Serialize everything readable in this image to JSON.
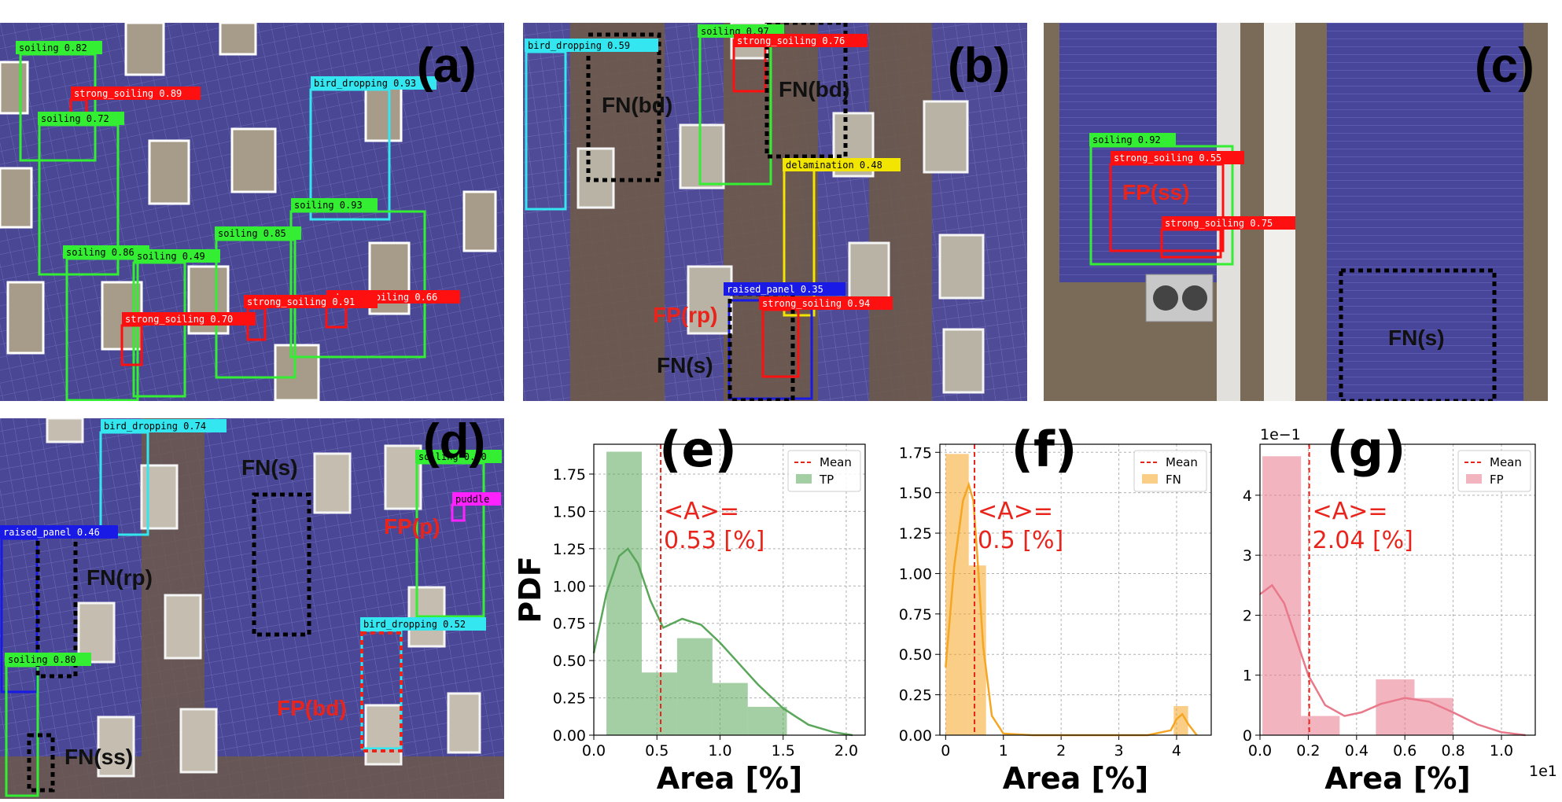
{
  "panels": {
    "a": {
      "id": "(a)",
      "detections": [
        {
          "label": "soiling 0.82",
          "color": "#33ee33"
        },
        {
          "label": "strong_soiling 0.89",
          "color": "#ff1010"
        },
        {
          "label": "soiling 0.72",
          "color": "#33ee33"
        },
        {
          "label": "bird_dropping 0.93",
          "color": "#33e6f0"
        },
        {
          "label": "soiling 0.93",
          "color": "#33ee33"
        },
        {
          "label": "soiling 0.85",
          "color": "#33ee33"
        },
        {
          "label": "soiling 0.86",
          "color": "#33ee33"
        },
        {
          "label": "soiling 0.49",
          "color": "#33ee33"
        },
        {
          "label": "strong_soiling 0.66",
          "color": "#ff1010"
        },
        {
          "label": "strong_soiling 0.91",
          "color": "#ff1010"
        },
        {
          "label": "strong_soiling 0.70",
          "color": "#ff1010"
        }
      ]
    },
    "b": {
      "id": "(b)",
      "detections": [
        {
          "label": "bird_dropping 0.59",
          "color": "#33e6f0"
        },
        {
          "label": "soiling 0.97",
          "color": "#33ee33"
        },
        {
          "label": "strong_soiling 0.76",
          "color": "#ff1010"
        },
        {
          "label": "delamination 0.48",
          "color": "#f2e600"
        },
        {
          "label": "raised_panel 0.35",
          "color": "#1a1ae6"
        },
        {
          "label": "strong_soiling 0.94",
          "color": "#ff1010"
        }
      ],
      "notes": [
        "FN(bd)",
        "FN(bd)",
        "FP(rp)",
        "FN(s)"
      ]
    },
    "c": {
      "id": "(c)",
      "detections": [
        {
          "label": "soiling 0.92",
          "color": "#33ee33"
        },
        {
          "label": "strong_soiling 0.55",
          "color": "#ff1010"
        },
        {
          "label": "strong_soiling 0.75",
          "color": "#ff1010"
        }
      ],
      "notes": [
        "FP(ss)",
        "FN(s)"
      ]
    },
    "d": {
      "id": "(d)",
      "detections": [
        {
          "label": "bird_dropping 0.74",
          "color": "#33e6f0"
        },
        {
          "label": "soiling 0.60",
          "color": "#33ee33"
        },
        {
          "label": "puddle",
          "color": "#ff22ff"
        },
        {
          "label": "raised_panel 0.46",
          "color": "#1a1ae6"
        },
        {
          "label": "bird_dropping 0.52",
          "color": "#33e6f0"
        },
        {
          "label": "soiling 0.80",
          "color": "#33ee33"
        }
      ],
      "notes": [
        "FN(s)",
        "FP(p)",
        "FN(rp)",
        "FP(bd)",
        "FN(ss)"
      ]
    }
  },
  "chart_data": [
    {
      "id": "(e)",
      "type": "bar",
      "xlabel": "Area [%]",
      "ylabel": "PDF",
      "xlim": [
        0,
        2.15
      ],
      "ylim": [
        0,
        1.95
      ],
      "xticks": [
        "0.0",
        "0.5",
        "1.0",
        "1.5",
        "2.0"
      ],
      "yticks": [
        "0.00",
        "0.25",
        "0.50",
        "0.75",
        "1.00",
        "1.25",
        "1.50",
        "1.75"
      ],
      "grid": true,
      "color": "#5aa65a",
      "bins": [
        {
          "x0": 0.1,
          "x1": 0.38,
          "value": 1.9
        },
        {
          "x0": 0.38,
          "x1": 0.66,
          "value": 0.42
        },
        {
          "x0": 0.66,
          "x1": 0.94,
          "value": 0.65
        },
        {
          "x0": 0.94,
          "x1": 1.22,
          "value": 0.35
        },
        {
          "x0": 1.22,
          "x1": 1.53,
          "value": 0.19
        }
      ],
      "kde": {
        "x": [
          0.0,
          0.1,
          0.2,
          0.27,
          0.35,
          0.45,
          0.55,
          0.7,
          0.85,
          1.0,
          1.15,
          1.3,
          1.5,
          1.7,
          1.9,
          2.05
        ],
        "y": [
          0.55,
          0.95,
          1.2,
          1.25,
          1.15,
          0.9,
          0.72,
          0.78,
          0.74,
          0.62,
          0.48,
          0.34,
          0.18,
          0.07,
          0.02,
          0.0
        ]
      },
      "mean": 0.53,
      "annotation": [
        "<A>=",
        "0.53 [%]"
      ],
      "legend": {
        "position": "top-right",
        "mean_label": "Mean",
        "series_label": "TP"
      }
    },
    {
      "id": "(f)",
      "type": "bar",
      "xlabel": "Area [%]",
      "ylabel": "",
      "xlim": [
        -0.1,
        4.6
      ],
      "ylim": [
        0,
        1.8
      ],
      "xticks": [
        "0",
        "1",
        "2",
        "3",
        "4"
      ],
      "yticks": [
        "0.00",
        "0.25",
        "0.50",
        "0.75",
        "1.00",
        "1.25",
        "1.50",
        "1.75"
      ],
      "grid": true,
      "color": "#f5a623",
      "bins": [
        {
          "x0": 0.0,
          "x1": 0.4,
          "value": 1.74
        },
        {
          "x0": 0.4,
          "x1": 0.7,
          "value": 1.05
        },
        {
          "x0": 3.95,
          "x1": 4.2,
          "value": 0.18
        }
      ],
      "kde": {
        "x": [
          0.0,
          0.15,
          0.3,
          0.4,
          0.48,
          0.55,
          0.65,
          0.8,
          1.0,
          1.5,
          2.5,
          3.5,
          3.9,
          4.0,
          4.1,
          4.2,
          4.35
        ],
        "y": [
          0.42,
          1.05,
          1.45,
          1.55,
          1.45,
          1.1,
          0.55,
          0.12,
          0.01,
          0.0,
          0.0,
          0.0,
          0.03,
          0.1,
          0.13,
          0.07,
          0.0
        ]
      },
      "mean": 0.5,
      "annotation": [
        "<A>=",
        "0.5 [%]"
      ],
      "legend": {
        "position": "top-right",
        "mean_label": "Mean",
        "series_label": "FN"
      }
    },
    {
      "id": "(g)",
      "type": "bar",
      "xlabel": "Area [%]",
      "ylabel": "",
      "xlim": [
        0.0,
        1.14
      ],
      "ylim": [
        0,
        4.85
      ],
      "xticks": [
        "0.0",
        "0.2",
        "0.4",
        "0.6",
        "0.8",
        "1.0"
      ],
      "yticks": [
        "0",
        "1",
        "2",
        "3",
        "4"
      ],
      "x_scale_label": "1e1",
      "y_scale_label": "1e−1",
      "grid": true,
      "color": "#e8788a",
      "bins": [
        {
          "x0": 0.01,
          "x1": 0.17,
          "value": 4.65
        },
        {
          "x0": 0.17,
          "x1": 0.33,
          "value": 0.32
        },
        {
          "x0": 0.48,
          "x1": 0.64,
          "value": 0.93
        },
        {
          "x0": 0.64,
          "x1": 0.8,
          "value": 0.62
        }
      ],
      "kde": {
        "x": [
          0.0,
          0.05,
          0.1,
          0.15,
          0.2,
          0.27,
          0.35,
          0.42,
          0.5,
          0.6,
          0.7,
          0.8,
          0.9,
          1.0,
          1.1
        ],
        "y": [
          2.35,
          2.5,
          2.2,
          1.6,
          1.0,
          0.5,
          0.32,
          0.38,
          0.52,
          0.62,
          0.56,
          0.38,
          0.18,
          0.05,
          0.0
        ]
      },
      "mean": 0.204,
      "annotation": [
        "<A>=",
        "2.04 [%]"
      ],
      "legend": {
        "position": "top-right",
        "mean_label": "Mean",
        "series_label": "FP"
      }
    }
  ]
}
